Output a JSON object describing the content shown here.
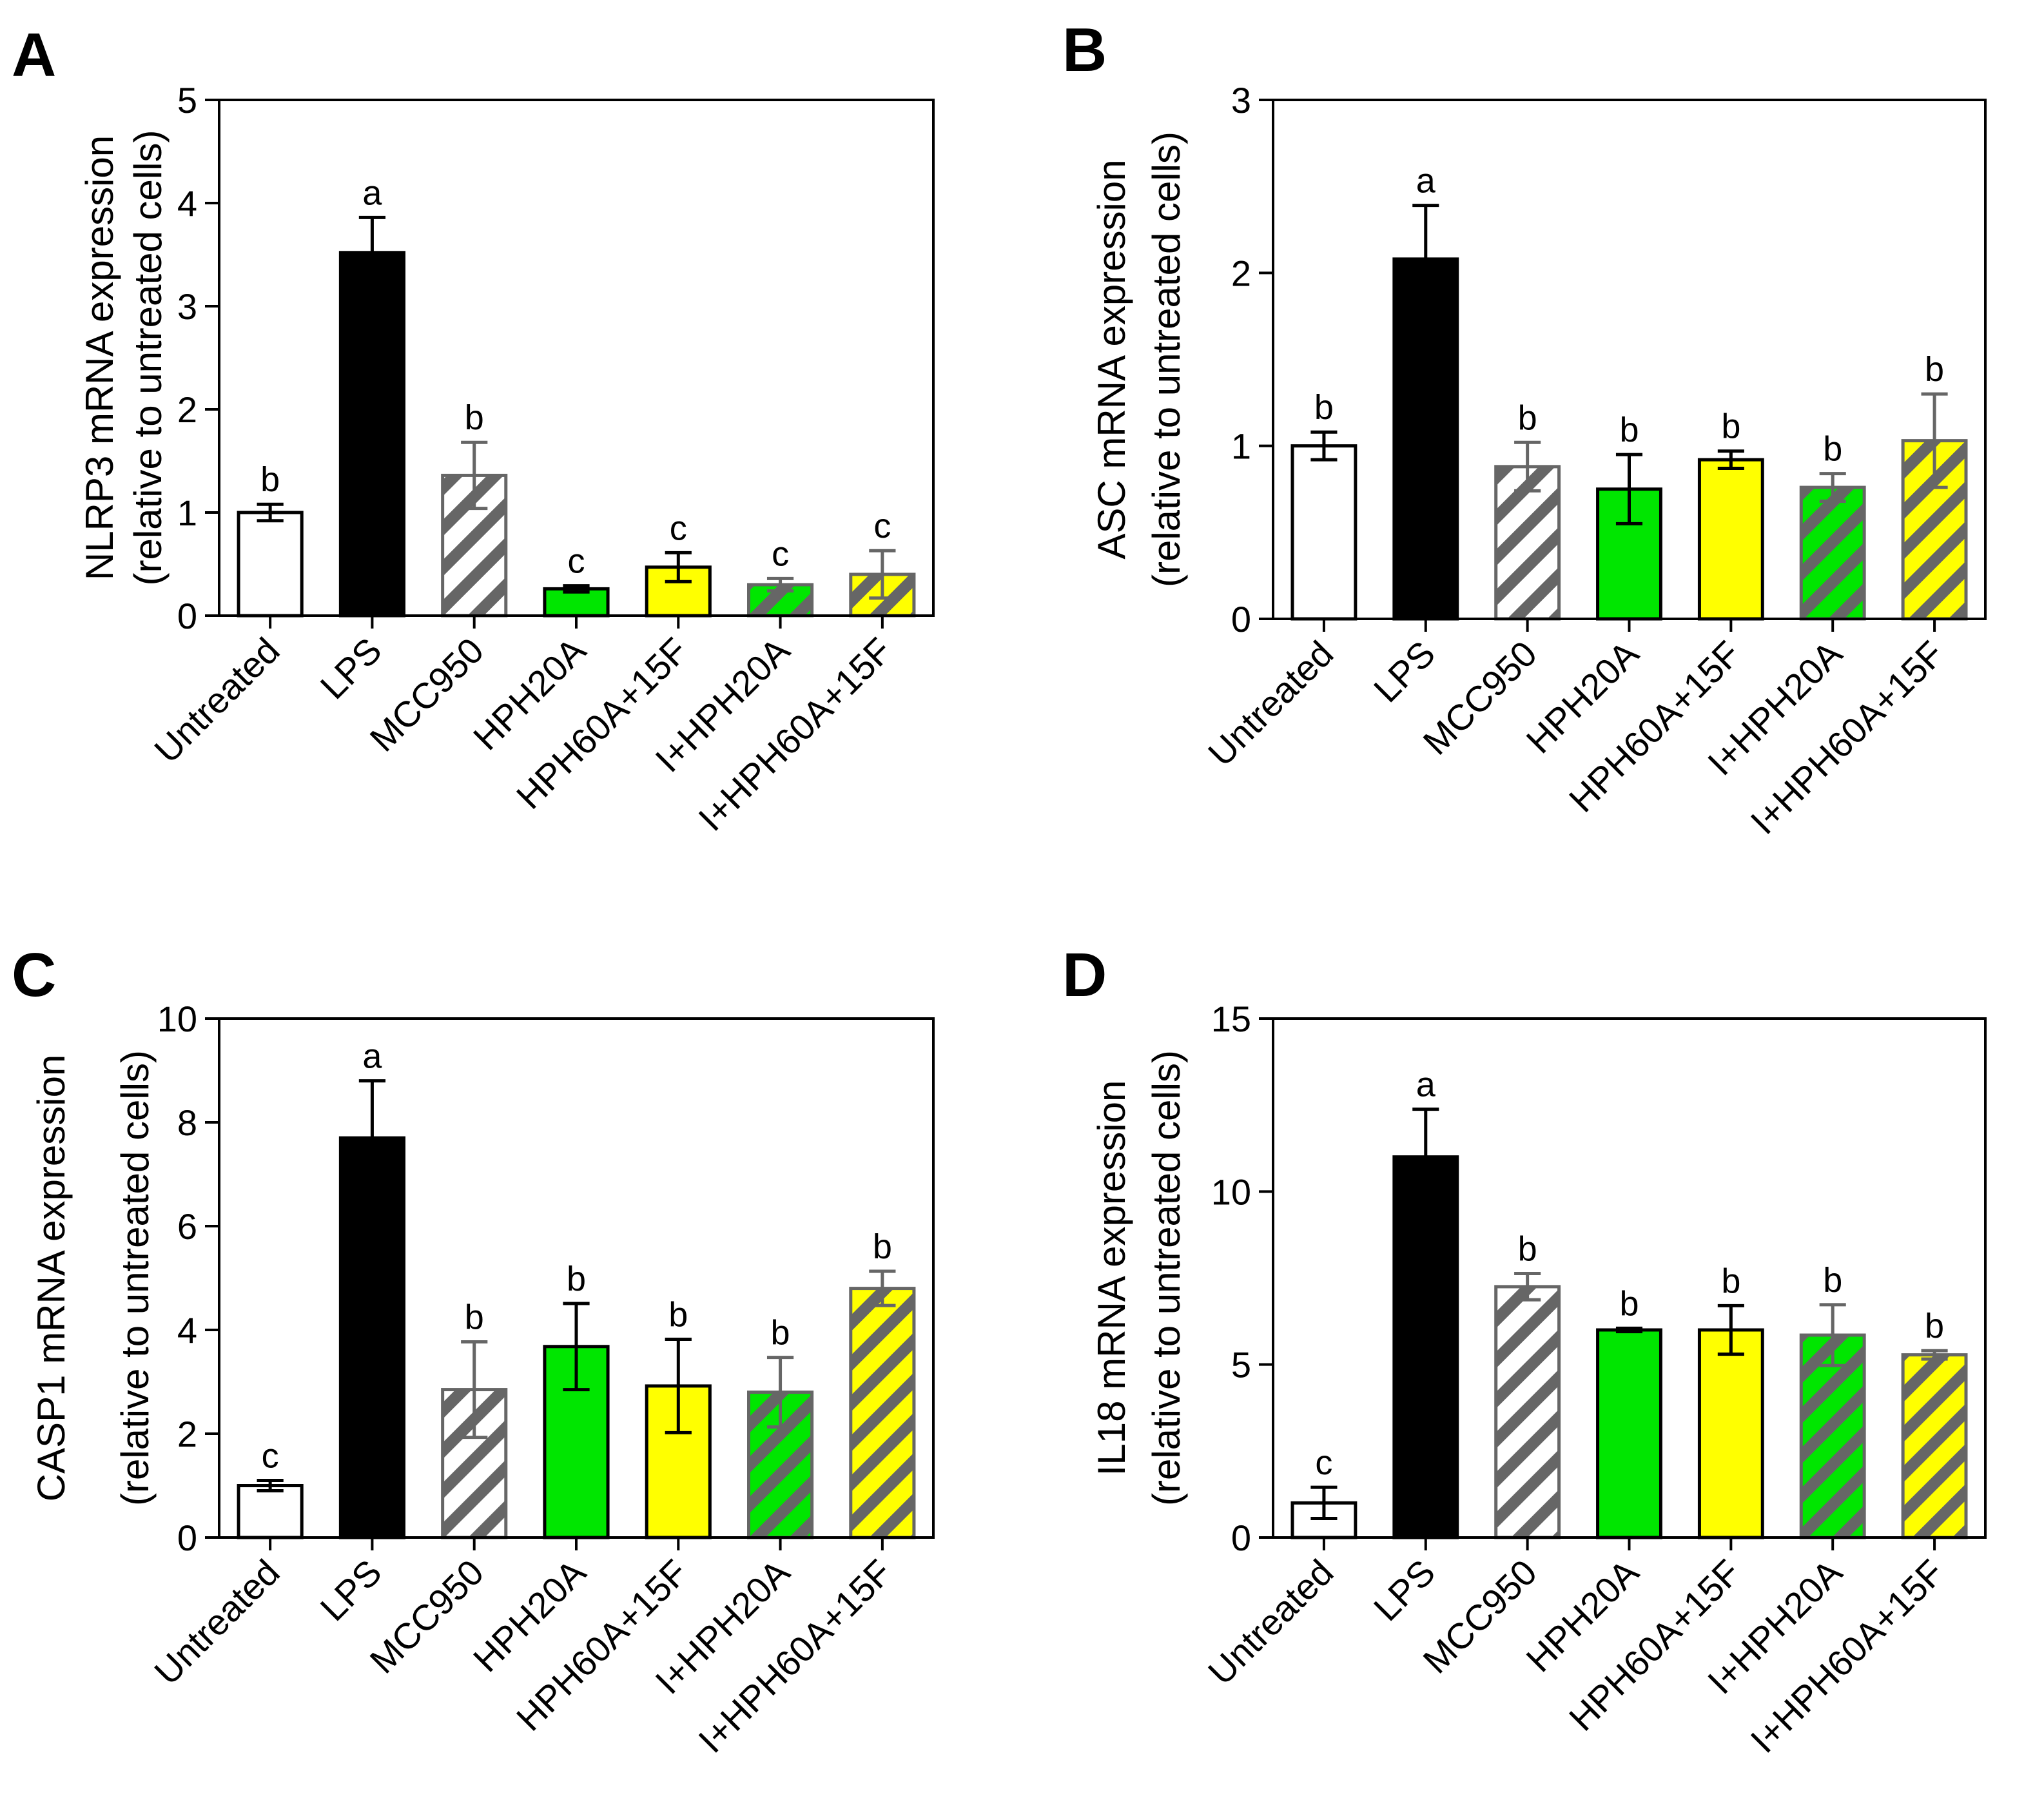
{
  "chart_data": [
    {
      "panel": "A",
      "type": "bar",
      "ylabel_line1": "NLRP3 mRNA expression",
      "ylabel_line2": "(relative to untreated cells)",
      "ylim": [
        0,
        5
      ],
      "yticks": [
        "0",
        "1",
        "2",
        "3",
        "4",
        "5"
      ],
      "yticks_values": [
        0,
        1,
        2,
        3,
        4,
        5
      ],
      "categories": [
        "Untreated",
        "LPS",
        "MCC950",
        "HPH20A",
        "HPH60A+15F",
        "I+HPH20A",
        "I+HPH60A+15F"
      ],
      "values": [
        1.0,
        3.52,
        1.36,
        0.26,
        0.47,
        0.3,
        0.4
      ],
      "errors": [
        0.08,
        0.34,
        0.32,
        0.03,
        0.14,
        0.06,
        0.23
      ],
      "significance": [
        "b",
        "a",
        "b",
        "c",
        "c",
        "c",
        "c"
      ]
    },
    {
      "panel": "B",
      "type": "bar",
      "ylabel_line1": "ASC mRNA expression",
      "ylabel_line2": "(relative to untreated cells)",
      "ylim": [
        0,
        3
      ],
      "yticks": [
        "0",
        "1",
        "2",
        "3"
      ],
      "yticks_values": [
        0,
        1,
        2,
        3
      ],
      "categories": [
        "Untreated",
        "LPS",
        "MCC950",
        "HPH20A",
        "HPH60A+15F",
        "I+HPH20A",
        "I+HPH60A+15F"
      ],
      "values": [
        1.0,
        2.08,
        0.88,
        0.75,
        0.92,
        0.76,
        1.03
      ],
      "errors": [
        0.08,
        0.31,
        0.14,
        0.2,
        0.05,
        0.08,
        0.27
      ],
      "significance": [
        "b",
        "a",
        "b",
        "b",
        "b",
        "b",
        "b"
      ]
    },
    {
      "panel": "C",
      "type": "bar",
      "ylabel_line1": "CASP1 mRNA expression",
      "ylabel_line2": "(relative to untreated cells)",
      "ylim": [
        0,
        10
      ],
      "yticks": [
        "0",
        "2",
        "4",
        "6",
        "8",
        "10"
      ],
      "yticks_values": [
        0,
        2,
        4,
        6,
        8,
        10
      ],
      "categories": [
        "Untreated",
        "LPS",
        "MCC950",
        "HPH20A",
        "HPH60A+15F",
        "I+HPH20A",
        "I+HPH60A+15F"
      ],
      "values": [
        1.0,
        7.7,
        2.85,
        3.68,
        2.92,
        2.8,
        4.8
      ],
      "errors": [
        0.1,
        1.1,
        0.92,
        0.83,
        0.9,
        0.67,
        0.33
      ],
      "significance": [
        "c",
        "a",
        "b",
        "b",
        "b",
        "b",
        "b"
      ]
    },
    {
      "panel": "D",
      "type": "bar",
      "ylabel_line1": "IL18 mRNA expression",
      "ylabel_line2": "(relative to untreated cells)",
      "ylim": [
        0,
        15
      ],
      "yticks": [
        "0",
        "5",
        "10",
        "15"
      ],
      "yticks_values": [
        0,
        5,
        10,
        15
      ],
      "categories": [
        "Untreated",
        "LPS",
        "MCC950",
        "HPH20A",
        "HPH60A+15F",
        "I+HPH20A",
        "I+HPH60A+15F"
      ],
      "values": [
        1.0,
        11.0,
        7.25,
        6.0,
        6.0,
        5.85,
        5.28
      ],
      "errors": [
        0.45,
        1.38,
        0.38,
        0.05,
        0.7,
        0.88,
        0.12
      ],
      "significance": [
        "c",
        "a",
        "b",
        "b",
        "b",
        "b",
        "b"
      ]
    }
  ],
  "bar_styles": [
    {
      "fill": "#ffffff",
      "hatch": "none",
      "stroke": "#000000"
    },
    {
      "fill": "#000000",
      "hatch": "none",
      "stroke": "#000000"
    },
    {
      "fill": "#ffffff",
      "hatch": "#666666",
      "stroke": "#666666"
    },
    {
      "fill": "#00e600",
      "hatch": "none",
      "stroke": "#000000"
    },
    {
      "fill": "#ffff00",
      "hatch": "none",
      "stroke": "#000000"
    },
    {
      "fill": "#00e600",
      "hatch": "#666666",
      "stroke": "#666666"
    },
    {
      "fill": "#ffff00",
      "hatch": "#666666",
      "stroke": "#666666"
    }
  ],
  "error_bar_colors": [
    "#000000",
    "#000000",
    "#666666",
    "#000000",
    "#000000",
    "#666666",
    "#666666"
  ]
}
